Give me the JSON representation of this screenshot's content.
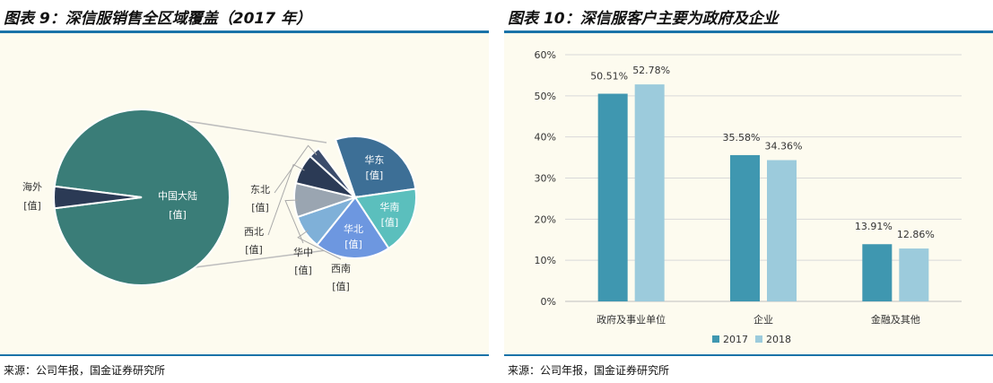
{
  "charts": [
    {
      "title": "图表 9：深信服销售全区域覆盖（2017 年）",
      "source": "来源：公司年报，国金证券研究所",
      "chart_data": {
        "type": "pie",
        "main_pie": [
          {
            "label": "中国大陆",
            "value_text": "[值]",
            "value": 0.96,
            "color": "#3a7d78"
          },
          {
            "label": "海外",
            "value_text": "[值]",
            "value": 0.04,
            "color": "#2b3a55"
          }
        ],
        "sub_pie": [
          {
            "label": "华东",
            "value_text": "[值]",
            "value": 0.28,
            "color": "#3d6f96"
          },
          {
            "label": "华南",
            "value_text": "[值]",
            "value": 0.18,
            "color": "#5bbfbd"
          },
          {
            "label": "华北",
            "value_text": "[值]",
            "value": 0.2,
            "color": "#6d97e0"
          },
          {
            "label": "西南",
            "value_text": "[值]",
            "value": 0.09,
            "color": "#7fb0d8"
          },
          {
            "label": "华中",
            "value_text": "[值]",
            "value": 0.09,
            "color": "#9aa5b1"
          },
          {
            "label": "西北",
            "value_text": "[值]",
            "value": 0.08,
            "color": "#2b3a55"
          },
          {
            "label": "东北",
            "value_text": "[值]",
            "value": 0.03,
            "color": "#3b4c6b"
          }
        ]
      }
    },
    {
      "title": "图表 10：深信服客户主要为政府及企业",
      "source": "来源：公司年报，国金证券研究所",
      "chart_data": {
        "type": "bar",
        "categories": [
          "政府及事业单位",
          "企业",
          "金融及其他"
        ],
        "series": [
          {
            "name": "2017",
            "values": [
              50.51,
              35.58,
              13.91
            ],
            "labels": [
              "50.51%",
              "35.58%",
              "13.91%"
            ],
            "color": "#3f97b0"
          },
          {
            "name": "2018",
            "values": [
              52.78,
              34.36,
              12.86
            ],
            "labels": [
              "52.78%",
              "34.36%",
              "12.86%"
            ],
            "color": "#9ccbdc"
          }
        ],
        "ylim": [
          0,
          60
        ],
        "yticks": [
          "0%",
          "10%",
          "20%",
          "30%",
          "40%",
          "50%",
          "60%"
        ],
        "grid": true,
        "legend": "bottom"
      }
    }
  ]
}
